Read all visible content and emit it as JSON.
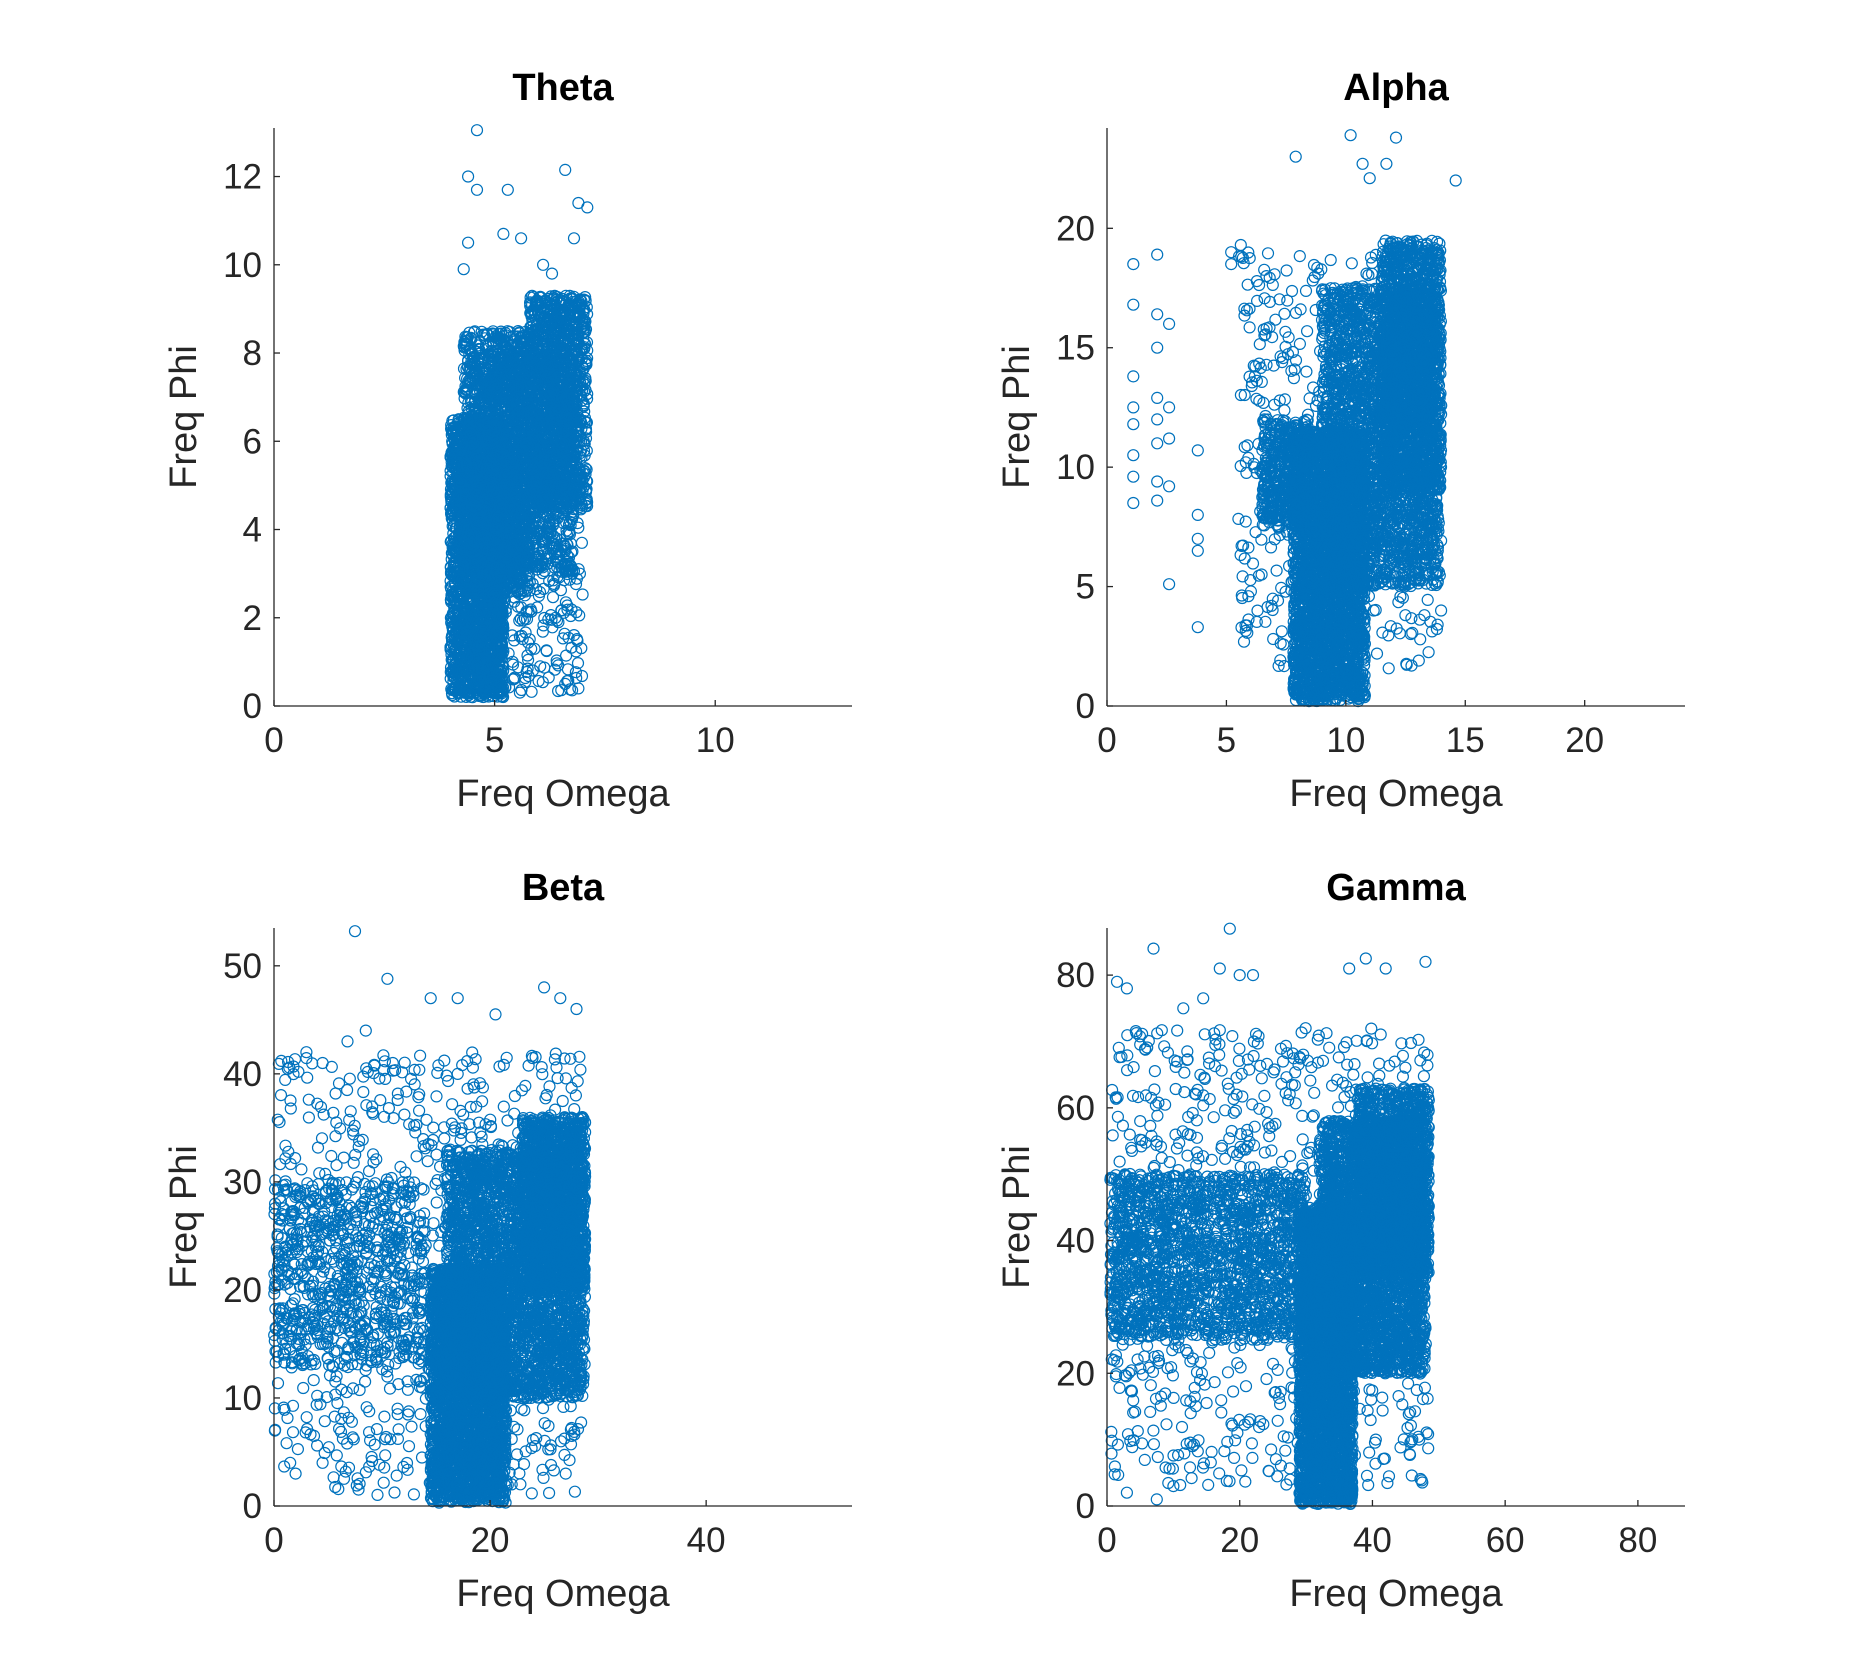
{
  "figure": {
    "background": "#ffffff"
  },
  "chart_data": [
    {
      "type": "scatter",
      "title": "Theta",
      "xlabel": "Freq Omega",
      "ylabel": "Freq Phi",
      "xlim": [
        0,
        13.1
      ],
      "ylim": [
        0,
        13.1
      ],
      "xticks": [
        0,
        5,
        10
      ],
      "yticks": [
        0,
        2,
        4,
        6,
        8,
        10,
        12
      ],
      "marker": "open-circle",
      "color": "#0072BD",
      "grid": false,
      "series": [
        {
          "clusters": [
            {
              "x": [
                4.0,
                5.2
              ],
              "y": [
                0.2,
                6.5
              ],
              "n": 2200,
              "shape": "uniform"
            },
            {
              "x": [
                4.3,
                5.8
              ],
              "y": [
                2.5,
                8.5
              ],
              "n": 1400,
              "shape": "uniform"
            },
            {
              "x": [
                5.8,
                7.1
              ],
              "y": [
                4.5,
                9.3
              ],
              "n": 1200,
              "shape": "uniform"
            },
            {
              "x": [
                4.8,
                6.8
              ],
              "y": [
                3.0,
                8.0
              ],
              "n": 1200,
              "shape": "uniform"
            },
            {
              "x": [
                4.2,
                7.0
              ],
              "y": [
                0.3,
                5.5
              ],
              "n": 350,
              "shape": "uniform"
            }
          ],
          "points": [
            [
              4.6,
              13.05
            ],
            [
              6.6,
              12.15
            ],
            [
              4.4,
              12.0
            ],
            [
              4.6,
              11.7
            ],
            [
              5.3,
              11.7
            ],
            [
              6.9,
              11.4
            ],
            [
              7.1,
              11.3
            ],
            [
              4.4,
              10.5
            ],
            [
              5.2,
              10.7
            ],
            [
              6.8,
              10.6
            ],
            [
              5.6,
              10.6
            ],
            [
              6.1,
              10.0
            ],
            [
              4.3,
              9.9
            ],
            [
              6.3,
              9.8
            ],
            [
              6.6,
              0.5
            ],
            [
              6.9,
              0.4
            ],
            [
              5.1,
              0.3
            ],
            [
              4.5,
              0.2
            ]
          ]
        }
      ]
    },
    {
      "type": "scatter",
      "title": "Alpha",
      "xlabel": "Freq Omega",
      "ylabel": "Freq Phi",
      "xlim": [
        0,
        24.2
      ],
      "ylim": [
        0,
        24.2
      ],
      "xticks": [
        0,
        5,
        10,
        15,
        20
      ],
      "yticks": [
        0,
        5,
        10,
        15,
        20
      ],
      "marker": "open-circle",
      "color": "#0072BD",
      "grid": false,
      "series": [
        {
          "clusters": [
            {
              "x": [
                7.8,
                10.8
              ],
              "y": [
                0.2,
                11.5
              ],
              "n": 2800,
              "shape": "uniform"
            },
            {
              "x": [
                9.0,
                13.9
              ],
              "y": [
                5.0,
                17.5
              ],
              "n": 2600,
              "shape": "uniform"
            },
            {
              "x": [
                11.5,
                14.0
              ],
              "y": [
                9.0,
                19.5
              ],
              "n": 1400,
              "shape": "uniform"
            },
            {
              "x": [
                6.5,
                8.5
              ],
              "y": [
                7.5,
                12.0
              ],
              "n": 450,
              "shape": "uniform"
            },
            {
              "x": [
                5.5,
                14.0
              ],
              "y": [
                1.5,
                19.0
              ],
              "n": 500,
              "shape": "uniform"
            }
          ],
          "points": [
            [
              1.1,
              18.5
            ],
            [
              1.1,
              16.8
            ],
            [
              1.1,
              13.8
            ],
            [
              1.1,
              12.5
            ],
            [
              1.1,
              11.8
            ],
            [
              1.1,
              10.5
            ],
            [
              1.1,
              9.6
            ],
            [
              1.1,
              8.5
            ],
            [
              2.1,
              18.9
            ],
            [
              2.1,
              16.4
            ],
            [
              2.1,
              15.0
            ],
            [
              2.1,
              12.9
            ],
            [
              2.1,
              12.0
            ],
            [
              2.1,
              11.0
            ],
            [
              2.1,
              9.4
            ],
            [
              2.1,
              8.6
            ],
            [
              2.6,
              16.0
            ],
            [
              2.6,
              12.5
            ],
            [
              2.6,
              11.2
            ],
            [
              2.6,
              9.2
            ],
            [
              2.6,
              5.1
            ],
            [
              3.8,
              10.7
            ],
            [
              3.8,
              8.0
            ],
            [
              3.8,
              7.0
            ],
            [
              3.8,
              6.5
            ],
            [
              3.8,
              3.3
            ],
            [
              10.2,
              23.9
            ],
            [
              12.1,
              23.8
            ],
            [
              7.9,
              23.0
            ],
            [
              10.7,
              22.7
            ],
            [
              11.7,
              22.7
            ],
            [
              14.6,
              22.0
            ],
            [
              11.0,
              22.1
            ],
            [
              5.2,
              19.0
            ],
            [
              5.2,
              18.5
            ],
            [
              5.6,
              19.3
            ]
          ]
        }
      ]
    },
    {
      "type": "scatter",
      "title": "Beta",
      "xlabel": "Freq Omega",
      "ylabel": "Freq Phi",
      "xlim": [
        0,
        53.5
      ],
      "ylim": [
        0,
        53.5
      ],
      "xticks": [
        0,
        20,
        40
      ],
      "yticks": [
        0,
        10,
        20,
        30,
        40,
        50
      ],
      "marker": "open-circle",
      "color": "#0072BD",
      "grid": false,
      "series": [
        {
          "clusters": [
            {
              "x": [
                14.5,
                21.5
              ],
              "y": [
                0.3,
                22.0
              ],
              "n": 3000,
              "shape": "uniform"
            },
            {
              "x": [
                16.0,
                28.8
              ],
              "y": [
                10.0,
                33.0
              ],
              "n": 3000,
              "shape": "uniform"
            },
            {
              "x": [
                23.0,
                28.8
              ],
              "y": [
                20.0,
                36.0
              ],
              "n": 1300,
              "shape": "uniform"
            },
            {
              "x": [
                0.0,
                14.0
              ],
              "y": [
                13.0,
                30.0
              ],
              "n": 700,
              "shape": "uniform"
            },
            {
              "x": [
                0.0,
                28.8
              ],
              "y": [
                1.0,
                42.0
              ],
              "n": 800,
              "shape": "uniform"
            }
          ],
          "points": [
            [
              7.5,
              53.2
            ],
            [
              10.5,
              48.8
            ],
            [
              8.5,
              44.0
            ],
            [
              6.8,
              43.0
            ],
            [
              14.5,
              47.0
            ],
            [
              17.0,
              47.0
            ],
            [
              20.5,
              45.5
            ],
            [
              25.0,
              48.0
            ],
            [
              26.5,
              47.0
            ],
            [
              28.0,
              46.0
            ],
            [
              3.0,
              42.0
            ],
            [
              4.5,
              41.0
            ],
            [
              11.0,
              41.0
            ],
            [
              2.0,
              3.0
            ],
            [
              1.5,
              4.0
            ],
            [
              4.5,
              4.0
            ],
            [
              22.0,
              2.0
            ],
            [
              27.0,
              3.0
            ]
          ]
        }
      ]
    },
    {
      "type": "scatter",
      "title": "Gamma",
      "xlabel": "Freq Omega",
      "ylabel": "Freq Phi",
      "xlim": [
        0,
        87.1
      ],
      "ylim": [
        0,
        87.1
      ],
      "xticks": [
        0,
        20,
        40,
        60,
        80
      ],
      "yticks": [
        0,
        20,
        40,
        60,
        80
      ],
      "marker": "open-circle",
      "color": "#0072BD",
      "grid": false,
      "series": [
        {
          "clusters": [
            {
              "x": [
                29.0,
                37.0
              ],
              "y": [
                0.3,
                45.0
              ],
              "n": 3000,
              "shape": "uniform"
            },
            {
              "x": [
                32.0,
                48.0
              ],
              "y": [
                20.0,
                58.0
              ],
              "n": 3000,
              "shape": "uniform"
            },
            {
              "x": [
                38.0,
                48.5
              ],
              "y": [
                35.0,
                63.0
              ],
              "n": 1300,
              "shape": "uniform"
            },
            {
              "x": [
                0.5,
                15.5
              ],
              "y": [
                25.0,
                50.0
              ],
              "n": 900,
              "shape": "uniform"
            },
            {
              "x": [
                16.0,
                30.0
              ],
              "y": [
                25.0,
                50.0
              ],
              "n": 800,
              "shape": "uniform"
            },
            {
              "x": [
                0.5,
                48.5
              ],
              "y": [
                3.0,
                72.0
              ],
              "n": 900,
              "shape": "uniform"
            }
          ],
          "points": [
            [
              18.5,
              87.0
            ],
            [
              7.0,
              84.0
            ],
            [
              1.5,
              79.0
            ],
            [
              3.0,
              78.0
            ],
            [
              17.0,
              81.0
            ],
            [
              20.0,
              80.0
            ],
            [
              22.0,
              80.0
            ],
            [
              39.0,
              82.5
            ],
            [
              36.5,
              81.0
            ],
            [
              42.0,
              81.0
            ],
            [
              48.0,
              82.0
            ],
            [
              11.5,
              75.0
            ],
            [
              14.5,
              76.5
            ],
            [
              7.5,
              1.0
            ],
            [
              3.0,
              2.0
            ],
            [
              10.0,
              3.0
            ]
          ]
        }
      ]
    }
  ]
}
